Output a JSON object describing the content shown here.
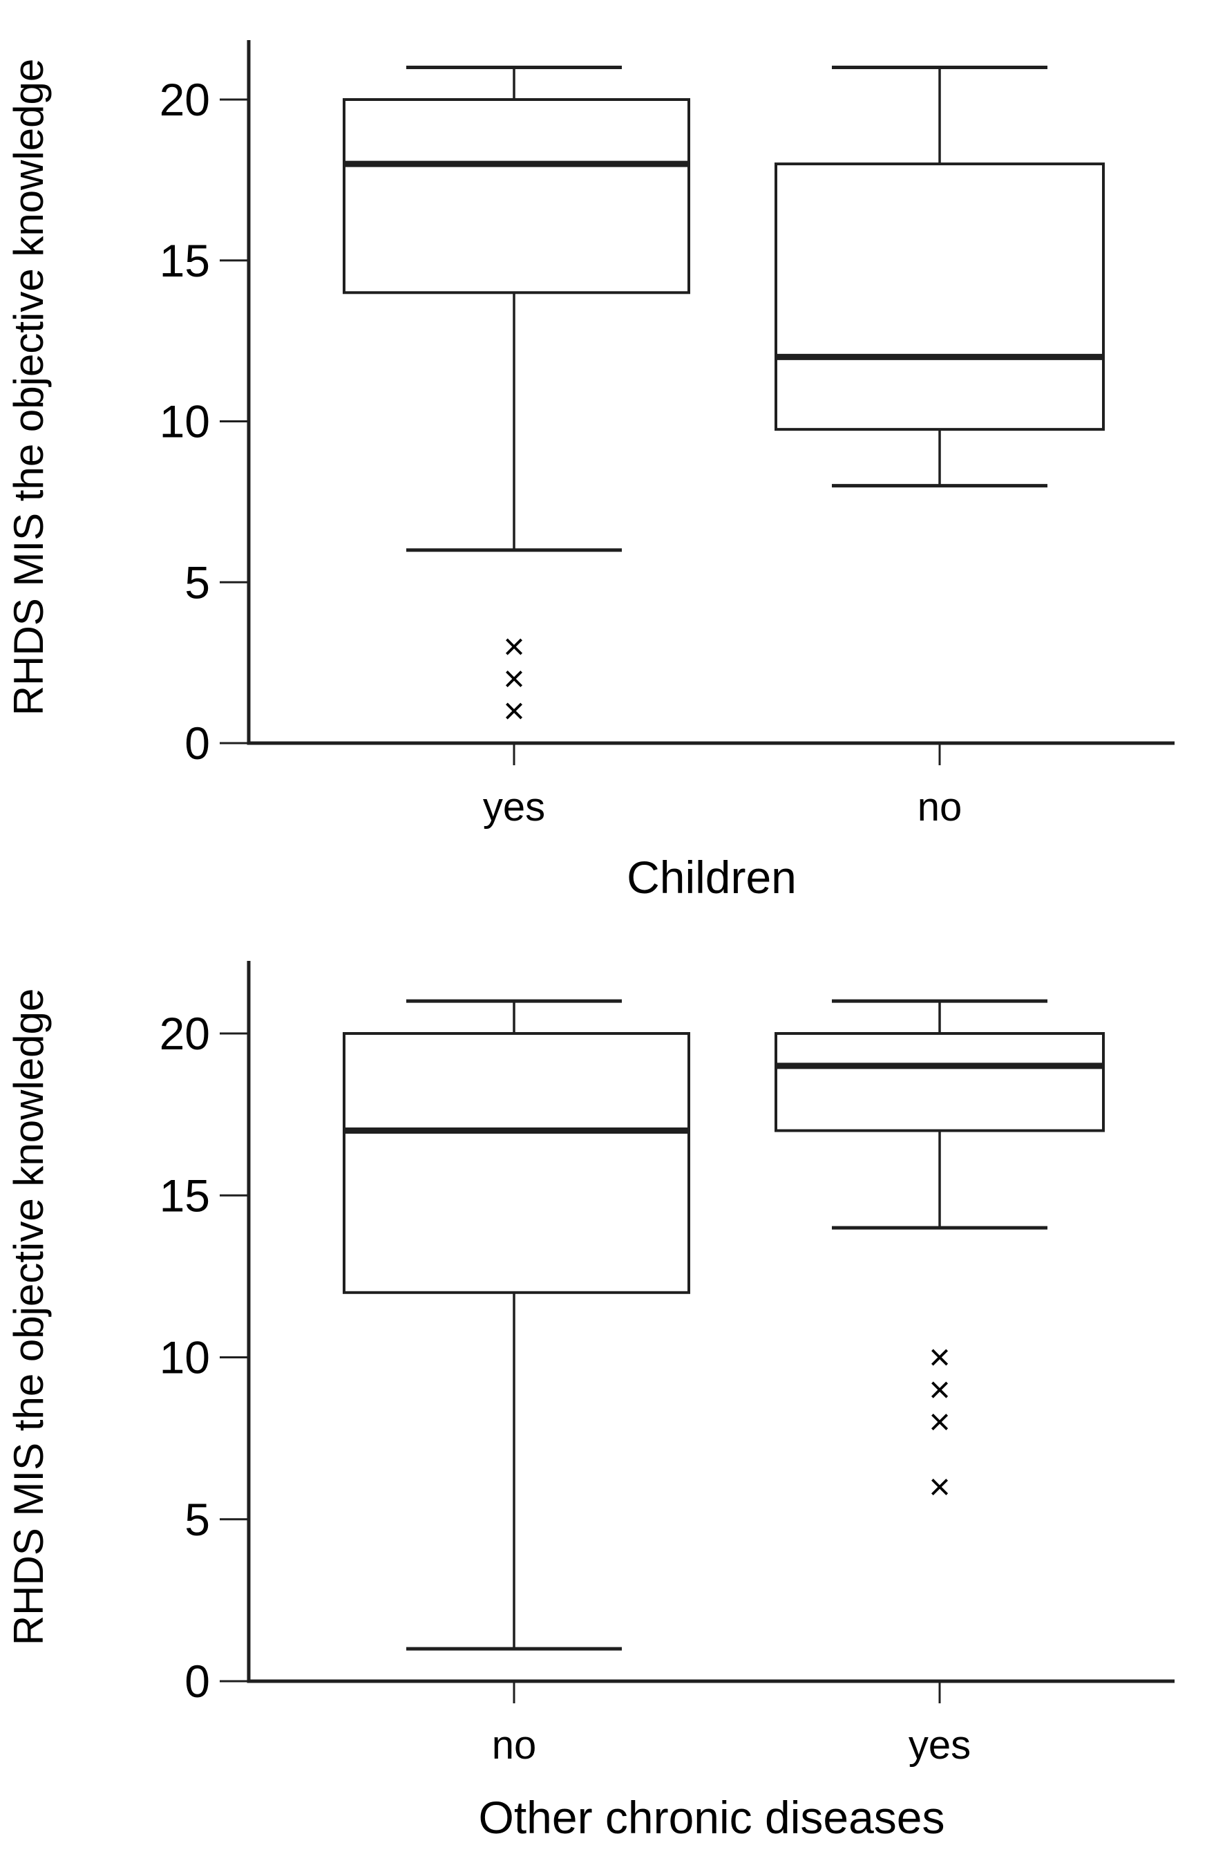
{
  "figure": {
    "background": "#ffffff",
    "line_color": "#1f1f1f",
    "text_color": "#000000",
    "marker_glyph": "×"
  },
  "chart_data": [
    {
      "type": "box",
      "orientation": "vertical",
      "xlabel": "Children",
      "ylabel": "RHDS MIS the objective knowledge",
      "ylim": [
        0,
        22.5
      ],
      "yticks": [
        0,
        5,
        10,
        15,
        20
      ],
      "grid": false,
      "legend": null,
      "categories": [
        "yes",
        "no"
      ],
      "boxes": [
        {
          "category": "yes",
          "whisker_low": 6,
          "q1": 14,
          "median": 18,
          "q3": 20,
          "whisker_high": 21,
          "outliers": [
            3,
            2,
            1
          ]
        },
        {
          "category": "no",
          "whisker_low": 8,
          "q1": 9.75,
          "median": 12,
          "q3": 18,
          "whisker_high": 21,
          "outliers": []
        }
      ]
    },
    {
      "type": "box",
      "orientation": "vertical",
      "xlabel": "Other chronic diseases",
      "ylabel": "RHDS MIS the objective knowledge",
      "ylim": [
        0,
        22.5
      ],
      "yticks": [
        0,
        5,
        10,
        15,
        20
      ],
      "grid": false,
      "legend": null,
      "categories": [
        "no",
        "yes"
      ],
      "boxes": [
        {
          "category": "no",
          "whisker_low": 1,
          "q1": 12,
          "median": 17,
          "q3": 20,
          "whisker_high": 21,
          "outliers": []
        },
        {
          "category": "yes",
          "whisker_low": 14,
          "q1": 17,
          "median": 19,
          "q3": 20,
          "whisker_high": 21,
          "outliers": [
            10,
            9,
            8,
            6
          ]
        }
      ]
    }
  ]
}
